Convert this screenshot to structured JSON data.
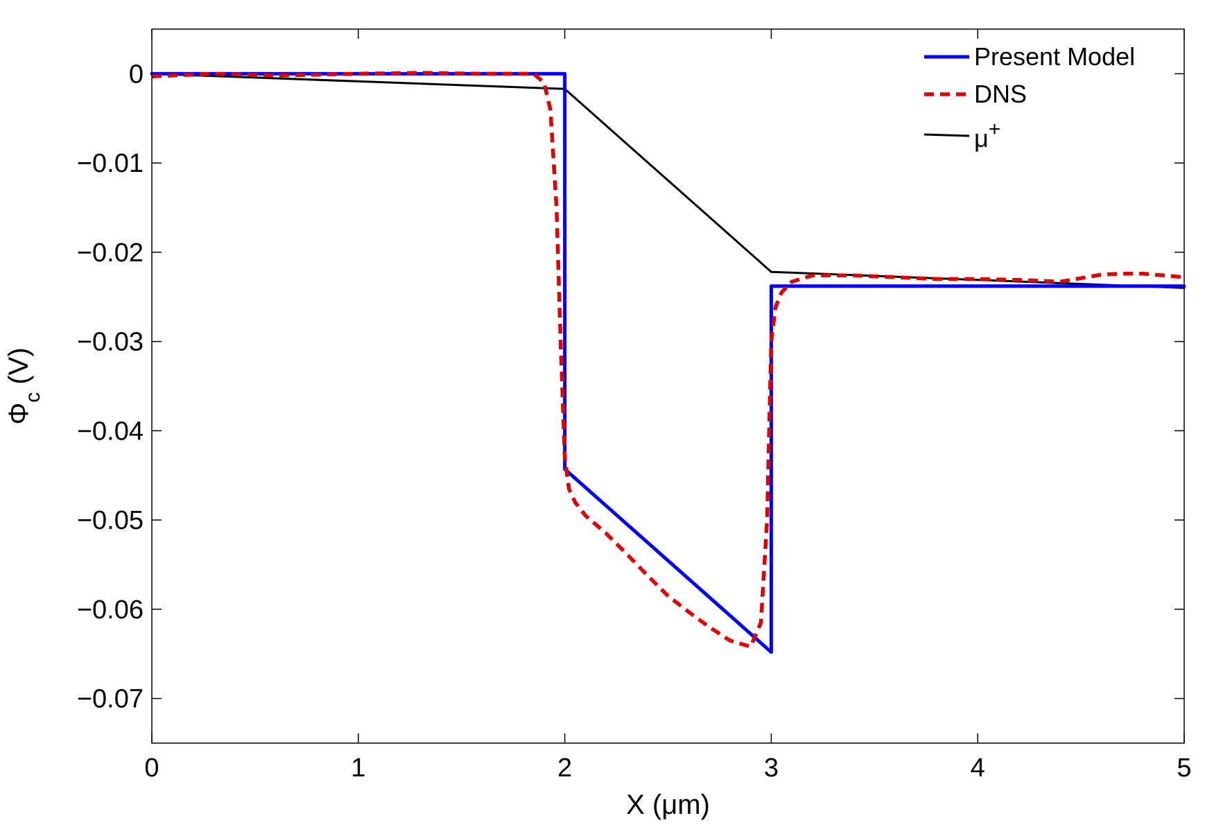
{
  "chart_data": {
    "type": "line",
    "title": "",
    "xlabel": "X (μm)",
    "ylabel": {
      "symbol": "Φ",
      "subscript": "c",
      "unit": " (V)"
    },
    "xlim": [
      0,
      5
    ],
    "ylim": [
      -0.075,
      0.005
    ],
    "xticks": [
      0,
      1,
      2,
      3,
      4,
      5
    ],
    "xtick_labels": [
      "0",
      "1",
      "2",
      "3",
      "4",
      "5"
    ],
    "yticks": [
      0,
      -0.01,
      -0.02,
      -0.03,
      -0.04,
      -0.05,
      -0.06,
      -0.07
    ],
    "ytick_labels": [
      "0",
      "−0.01",
      "−0.02",
      "−0.03",
      "−0.04",
      "−0.05",
      "−0.06",
      "−0.07"
    ],
    "grid": false,
    "legend_position": "top-right",
    "series": [
      {
        "name": "Present Model",
        "color": "#0000ff",
        "style": "solid",
        "x": [
          0,
          2.0,
          2.0,
          3.0,
          3.0,
          5.0
        ],
        "y": [
          0,
          0,
          -0.0443,
          -0.0648,
          -0.0238,
          -0.0238
        ]
      },
      {
        "name": "DNS",
        "color": "#e00000",
        "style": "dashed",
        "x": [
          0,
          0.3,
          0.6,
          1.0,
          1.3,
          1.6,
          1.85,
          1.9,
          1.93,
          1.96,
          1.98,
          2.0,
          2.02,
          2.05,
          2.1,
          2.2,
          2.3,
          2.4,
          2.5,
          2.6,
          2.7,
          2.8,
          2.9,
          2.95,
          2.98,
          3.0,
          3.02,
          3.05,
          3.1,
          3.2,
          3.4,
          3.6,
          3.8,
          4.0,
          4.2,
          4.4,
          4.6,
          4.7,
          4.8,
          5.0
        ],
        "y": [
          -0.0003,
          0,
          -0.0002,
          0,
          0.0001,
          0,
          0,
          -0.001,
          -0.004,
          -0.015,
          -0.03,
          -0.043,
          -0.0465,
          -0.048,
          -0.0495,
          -0.0515,
          -0.0538,
          -0.0562,
          -0.0585,
          -0.0603,
          -0.062,
          -0.0635,
          -0.0642,
          -0.0615,
          -0.05,
          -0.03,
          -0.0262,
          -0.0245,
          -0.0233,
          -0.0226,
          -0.0226,
          -0.0228,
          -0.023,
          -0.023,
          -0.0231,
          -0.0233,
          -0.0225,
          -0.0224,
          -0.0224,
          -0.0228
        ]
      },
      {
        "name": "μ",
        "name_sup": "+",
        "color": "#000000",
        "style": "solid-thin",
        "x": [
          0,
          2.0,
          3.0,
          5.0
        ],
        "y": [
          0,
          -0.0017,
          -0.0222,
          -0.024
        ]
      }
    ]
  }
}
